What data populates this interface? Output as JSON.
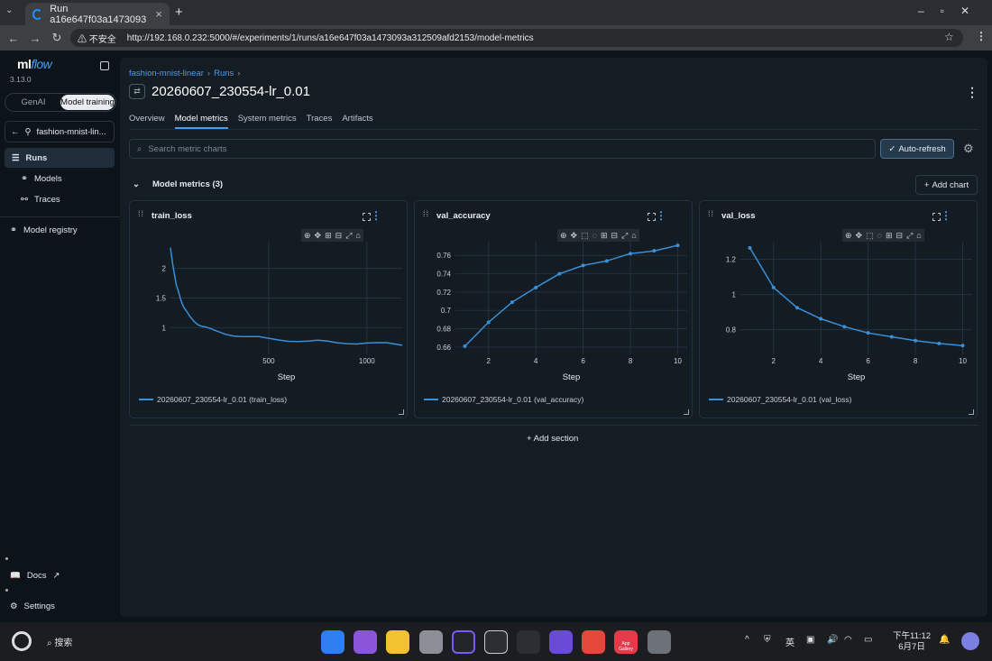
{
  "browser": {
    "tab_title": "Run a16e647f03a1473093",
    "url": "http://192.168.0.232:5000/#/experiments/1/runs/a16e647f03a1473093a312509afd2153/model-metrics",
    "insecure_label": "不安全"
  },
  "sidebar": {
    "logo_text": "ml",
    "logo_flow": "flow",
    "version": "3.13.0",
    "toggle": [
      "GenAI",
      "Model training"
    ],
    "experiment": "fashion-mnist-lin...",
    "items": [
      {
        "label": "Runs",
        "icon": "list-icon"
      },
      {
        "label": "Models",
        "icon": "models-icon"
      },
      {
        "label": "Traces",
        "icon": "traces-icon"
      }
    ],
    "registry": "Model registry",
    "docs": "Docs",
    "settings": "Settings"
  },
  "header": {
    "breadcrumb": [
      "fashion-mnist-linear",
      "Runs"
    ],
    "title": "20260607_230554-lr_0.01",
    "tabs": [
      "Overview",
      "Model metrics",
      "System metrics",
      "Traces",
      "Artifacts"
    ],
    "active_tab": "Model metrics"
  },
  "toolbar": {
    "search_placeholder": "Search metric charts",
    "auto_refresh": "Auto-refresh"
  },
  "section": {
    "title": "Model metrics (3)",
    "add_chart": "Add chart",
    "add_section": "Add section"
  },
  "colors": {
    "accent": "#4a9cf1",
    "line": "#3a8fd6"
  },
  "chart_data": [
    {
      "type": "line",
      "title": "train_loss",
      "xlabel": "Step",
      "ylabel": "",
      "x_ticks": [
        "500",
        "1000"
      ],
      "y_ticks": [
        "1",
        "1.5",
        "2"
      ],
      "xlim": [
        0,
        1180
      ],
      "ylim": [
        0.55,
        2.45
      ],
      "series": [
        {
          "name": "20260607_230554-lr_0.01 (train_loss)",
          "x": [
            0,
            10,
            20,
            30,
            40,
            50,
            60,
            70,
            80,
            100,
            120,
            140,
            160,
            180,
            200,
            240,
            280,
            320,
            360,
            400,
            450,
            500,
            550,
            600,
            650,
            700,
            750,
            800,
            850,
            900,
            950,
            1000,
            1050,
            1100,
            1150,
            1180
          ],
          "y": [
            2.35,
            2.1,
            1.9,
            1.72,
            1.62,
            1.5,
            1.4,
            1.32,
            1.27,
            1.18,
            1.12,
            1.07,
            1.03,
            1.0,
            0.97,
            0.93,
            0.9,
            0.88,
            0.86,
            0.84,
            0.83,
            0.81,
            0.8,
            0.79,
            0.78,
            0.77,
            0.77,
            0.76,
            0.75,
            0.75,
            0.74,
            0.74,
            0.73,
            0.73,
            0.72,
            0.72
          ]
        }
      ]
    },
    {
      "type": "line",
      "title": "val_accuracy",
      "xlabel": "Step",
      "ylabel": "",
      "x_ticks": [
        "2",
        "4",
        "6",
        "8",
        "10"
      ],
      "y_ticks": [
        "0.66",
        "0.68",
        "0.7",
        "0.72",
        "0.74",
        "0.76"
      ],
      "xlim": [
        0.6,
        10.4
      ],
      "ylim": [
        0.652,
        0.775
      ],
      "series": [
        {
          "name": "20260607_230554-lr_0.01 (val_accuracy)",
          "x": [
            1,
            2,
            3,
            4,
            5,
            6,
            7,
            8,
            9,
            10
          ],
          "y": [
            0.661,
            0.687,
            0.709,
            0.725,
            0.74,
            0.749,
            0.754,
            0.762,
            0.765,
            0.771
          ]
        }
      ]
    },
    {
      "type": "line",
      "title": "val_loss",
      "xlabel": "Step",
      "ylabel": "",
      "x_ticks": [
        "2",
        "4",
        "6",
        "8",
        "10"
      ],
      "y_ticks": [
        "0.8",
        "1",
        "1.2"
      ],
      "xlim": [
        0.6,
        10.4
      ],
      "ylim": [
        0.66,
        1.3
      ],
      "series": [
        {
          "name": "20260607_230554-lr_0.01 (val_loss)",
          "x": [
            1,
            2,
            3,
            4,
            5,
            6,
            7,
            8,
            9,
            10
          ],
          "y": [
            1.265,
            1.04,
            0.925,
            0.862,
            0.817,
            0.782,
            0.76,
            0.738,
            0.722,
            0.71
          ]
        }
      ]
    }
  ],
  "taskbar": {
    "search_label": "搜索",
    "time": "下午11:12",
    "date": "6月7日",
    "ime": "英",
    "app_gallery": "App Gallery"
  }
}
